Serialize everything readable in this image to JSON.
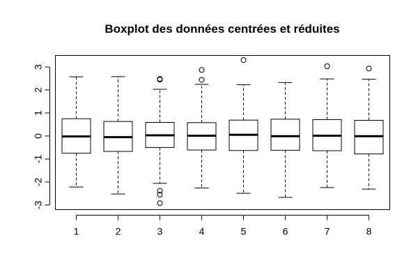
{
  "chart_data": {
    "type": "boxplot",
    "title": "Boxplot des données centrées et réduites",
    "xlabel": "",
    "ylabel": "",
    "categories": [
      "1",
      "2",
      "3",
      "4",
      "5",
      "6",
      "7",
      "8"
    ],
    "ylim": [
      -3.2,
      3.5
    ],
    "yticks": [
      "-3",
      "-2",
      "-1",
      "0",
      "1",
      "2",
      "3"
    ],
    "boxes": [
      {
        "category": "1",
        "whisker_low": -2.22,
        "q1": -0.75,
        "median": -0.02,
        "q3": 0.75,
        "whisker_high": 2.57,
        "outliers": []
      },
      {
        "category": "2",
        "whisker_low": -2.52,
        "q1": -0.67,
        "median": -0.05,
        "q3": 0.63,
        "whisker_high": 2.58,
        "outliers": []
      },
      {
        "category": "3",
        "whisker_low": -2.06,
        "q1": -0.5,
        "median": 0.03,
        "q3": 0.59,
        "whisker_high": 2.03,
        "outliers": [
          2.45,
          2.48,
          -2.38,
          -2.55,
          -2.92
        ]
      },
      {
        "category": "4",
        "whisker_low": -2.26,
        "q1": -0.61,
        "median": 0.01,
        "q3": 0.58,
        "whisker_high": 2.24,
        "outliers": [
          2.44,
          2.87
        ]
      },
      {
        "category": "5",
        "whisker_low": -2.49,
        "q1": -0.63,
        "median": 0.05,
        "q3": 0.69,
        "whisker_high": 2.23,
        "outliers": [
          3.3
        ]
      },
      {
        "category": "6",
        "whisker_low": -2.67,
        "q1": -0.62,
        "median": -0.01,
        "q3": 0.73,
        "whisker_high": 2.32,
        "outliers": []
      },
      {
        "category": "7",
        "whisker_low": -2.24,
        "q1": -0.64,
        "median": 0.01,
        "q3": 0.71,
        "whisker_high": 2.48,
        "outliers": [
          3.03
        ]
      },
      {
        "category": "8",
        "whisker_low": -2.31,
        "q1": -0.78,
        "median": -0.01,
        "q3": 0.68,
        "whisker_high": 2.47,
        "outliers": [
          2.93
        ]
      }
    ],
    "grid": false,
    "legend": "none"
  }
}
